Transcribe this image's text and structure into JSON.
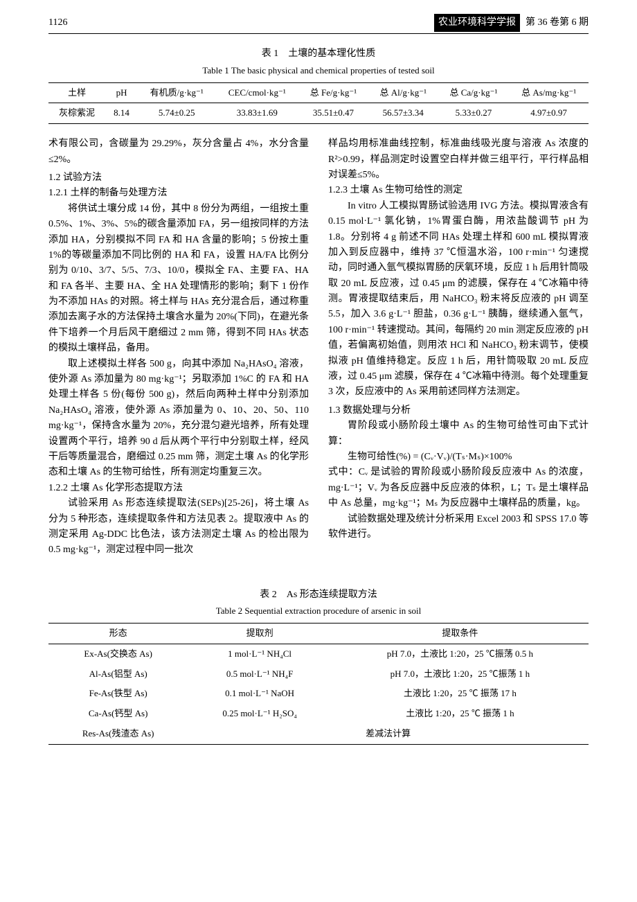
{
  "header": {
    "page_num": "1126",
    "journal": "农业环境科学学报",
    "issue": "第 36 卷第 6 期"
  },
  "table1": {
    "caption_cn": "表 1　土壤的基本理化性质",
    "caption_en": "Table 1  The basic physical and chemical properties of tested soil",
    "headers": [
      "土样",
      "pH",
      "有机质/g·kg⁻¹",
      "CEC/cmol·kg⁻¹",
      "总 Fe/g·kg⁻¹",
      "总 Al/g·kg⁻¹",
      "总 Ca/g·kg⁻¹",
      "总 As/mg·kg⁻¹"
    ],
    "row": [
      "灰棕紫泥",
      "8.14",
      "5.74±0.25",
      "33.83±1.69",
      "35.51±0.47",
      "56.57±3.34",
      "5.33±0.27",
      "4.97±0.97"
    ]
  },
  "left_col": {
    "p1": "术有限公司，含碳量为 29.29%，灰分含量占 4%，水分含量≤2%。",
    "h12": "1.2  试验方法",
    "h121": "1.2.1  土样的制备与处理方法",
    "p2": "将供试土壤分成 14 份，其中 8 份分为两组，一组按土重 0.5%、1%、3%、5%的碳含量添加 FA，另一组按同样的方法添加 HA，分别模拟不同 FA 和 HA 含量的影响；5 份按土重 1%的等碳量添加不同比例的 HA 和 FA，设置 HA/FA 比例分别为 0/10、3/7、5/5、7/3、10/0，模拟全 FA、主要 FA、HA 和 FA 各半、主要 HA、全 HA 处理情形的影响；剩下 1 份作为不添加 HAs 的对照。将土样与 HAs 充分混合后，通过称重添加去离子水的方法保持土壤含水量为 20%(下同)，在避光条件下培养一个月后风干磨细过 2 mm 筛，得到不同 HAs 状态的模拟土壤样品，备用。",
    "p3": "取上述模拟土样各 500 g，向其中添加 Na₂HAsO₄ 溶液，使外源 As 添加量为 80 mg·kg⁻¹；另取添加 1%C 的 FA 和 HA 处理土样各 5 份(每份 500 g)，然后向两种土样中分别添加 Na₂HAsO₄ 溶液，使外源 As 添加量为 0、10、20、50、110 mg·kg⁻¹，保持含水量为 20%，充分混匀避光培养，所有处理设置两个平行，培养 90 d 后从两个平行中分别取土样，经风干后等质量混合，磨细过 0.25 mm 筛，测定土壤 As 的化学形态和土壤 As 的生物可给性，所有测定均重复三次。",
    "h122": "1.2.2  土壤 As 化学形态提取方法",
    "p4": "试验采用 As 形态连续提取法(SEPs)[25-26]，将土壤 As 分为 5 种形态，连续提取条件和方法见表 2。提取液中 As 的测定采用 Ag-DDC 比色法，该方法测定土壤 As 的检出限为 0.5 mg·kg⁻¹，测定过程中同一批次"
  },
  "right_col": {
    "p1": "样品均用标准曲线控制，标准曲线吸光度与溶液 As 浓度的 R²>0.99，样品测定时设置空白样并做三组平行，平行样品相对误差≤5%。",
    "h123": "1.2.3  土壤 As 生物可给性的测定",
    "p2": "In vitro 人工模拟胃肠试验选用 IVG 方法。模拟胃液含有 0.15 mol·L⁻¹ 氯化钠，1%胃蛋白酶，用浓盐酸调节 pH 为 1.8。分别将 4 g 前述不同 HAs 处理土样和 600 mL 模拟胃液加入到反应器中，维持 37 ℃恒温水浴，100 r·min⁻¹ 匀速搅动，同时通入氩气模拟胃肠的厌氧环境，反应 1 h 后用针筒吸取 20 mL 反应液，过 0.45 μm 的滤膜，保存在 4 ℃冰箱中待测。胃液提取结束后，用 NaHCO₃ 粉末将反应液的 pH 调至 5.5，加入 3.6 g·L⁻¹ 胆盐，0.36 g·L⁻¹ 胰酶，继续通入氩气，100 r·min⁻¹ 转速搅动。其间，每隔约 20 min 测定反应液的 pH 值，若偏离初始值，则用浓 HCl 和 NaHCO₃ 粉末调节，使模拟液 pH 值维持稳定。反应 1 h 后，用针筒吸取 20 mL 反应液，过 0.45 μm 滤膜，保存在 4 ℃冰箱中待测。每个处理重复 3 次，反应液中的 As 采用前述同样方法测定。",
    "h13": "1.3  数据处理与分析",
    "p3": "胃阶段或小肠阶段土壤中 As 的生物可给性可由下式计算：",
    "formula": "生物可给性(%) = (Cᵥ·Vᵥ)/(Tₛ·Mₛ)×100%",
    "p4": "式中：Cᵥ 是试验的胃阶段或小肠阶段反应液中 As 的浓度，mg·L⁻¹；Vᵥ 为各反应器中反应液的体积，L；Tₛ 是土壤样品中 As 总量，mg·kg⁻¹；Mₛ 为反应器中土壤样品的质量，kg。",
    "p5": "试验数据处理及统计分析采用 Excel 2003 和 SPSS 17.0 等软件进行。"
  },
  "table2": {
    "caption_cn": "表 2　As 形态连续提取方法",
    "caption_en": "Table 2  Sequential extraction procedure of arsenic in soil",
    "headers": [
      "形态",
      "提取剂",
      "提取条件"
    ],
    "rows": [
      [
        "Ex-As(交换态 As)",
        "1 mol·L⁻¹ NH₄Cl",
        "pH 7.0，土液比 1:20，25 ℃振荡 0.5 h"
      ],
      [
        "Al-As(铝型 As)",
        "0.5 mol·L⁻¹ NH₄F",
        "pH 7.0，土液比 1:20，25 ℃振荡 1 h"
      ],
      [
        "Fe-As(铁型 As)",
        "0.1 mol·L⁻¹ NaOH",
        "土液比 1:20，25 ℃ 振荡 17 h"
      ],
      [
        "Ca-As(钙型 As)",
        "0.25 mol·L⁻¹ H₂SO₄",
        "土液比 1:20，25 ℃ 振荡 1 h"
      ],
      [
        "Res-As(残渣态 As)",
        "差减法计算",
        ""
      ]
    ]
  }
}
